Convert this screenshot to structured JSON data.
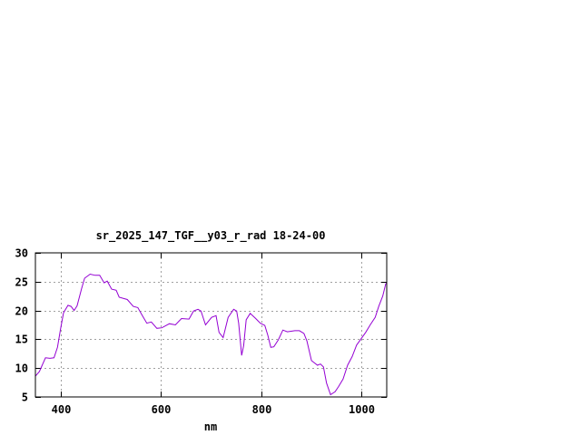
{
  "chart_data": {
    "type": "line",
    "title": "sr_2025_147_TGF__y03_r_rad 18-24-00",
    "xlabel": "nm",
    "ylabel": "",
    "xlim": [
      350,
      1050
    ],
    "ylim": [
      5,
      30
    ],
    "xticks": [
      400,
      600,
      800,
      1000
    ],
    "yticks": [
      5,
      10,
      15,
      20,
      25,
      30
    ],
    "grid": true,
    "line_color": "#9400d3",
    "series": [
      {
        "x": [
          350,
          358,
          370,
          379,
          387,
          394,
          400,
          406,
          415,
          421,
          427,
          433,
          442,
          448,
          459,
          469,
          478,
          487,
          493,
          502,
          511,
          517,
          533,
          545,
          554,
          563,
          572,
          581,
          592,
          602,
          617,
          629,
          641,
          656,
          665,
          674,
          680,
          689,
          701,
          710,
          716,
          724,
          734,
          745,
          751,
          755,
          761,
          765,
          770,
          778,
          789,
          798,
          807,
          813,
          819,
          825,
          834,
          843,
          852,
          867,
          876,
          885,
          891,
          900,
          912,
          918,
          924,
          930,
          938,
          947,
          954,
          963,
          972,
          981,
          990,
          999,
          1008,
          1017,
          1027,
          1034,
          1042,
          1048,
          1050
        ],
        "y": [
          8.6,
          9.4,
          11.8,
          11.7,
          11.8,
          13.6,
          16.7,
          19.6,
          20.9,
          20.7,
          20.0,
          20.8,
          23.8,
          25.6,
          26.3,
          26.1,
          26.1,
          24.8,
          25.1,
          23.7,
          23.5,
          22.3,
          21.9,
          20.7,
          20.5,
          19.1,
          17.8,
          18.0,
          16.9,
          17.0,
          17.7,
          17.5,
          18.6,
          18.5,
          19.9,
          20.2,
          19.9,
          17.5,
          18.8,
          19.1,
          16.2,
          15.3,
          18.8,
          20.2,
          19.9,
          17.8,
          12.2,
          13.9,
          18.4,
          19.5,
          18.6,
          17.8,
          17.4,
          15.7,
          13.6,
          13.7,
          14.9,
          16.6,
          16.3,
          16.5,
          16.5,
          16.0,
          14.7,
          11.3,
          10.5,
          10.7,
          10.2,
          7.4,
          5.4,
          5.9,
          6.8,
          8.1,
          10.5,
          12.0,
          14.0,
          15.1,
          16.2,
          17.5,
          18.8,
          20.7,
          22.5,
          24.6,
          24.8
        ]
      }
    ]
  }
}
